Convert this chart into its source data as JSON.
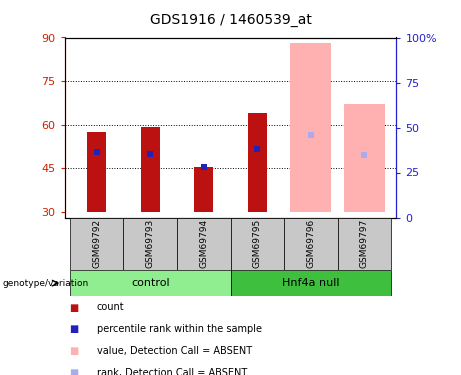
{
  "title": "GDS1916 / 1460539_at",
  "samples": [
    "GSM69792",
    "GSM69793",
    "GSM69794",
    "GSM69795",
    "GSM69796",
    "GSM69797"
  ],
  "ylim_left": [
    28,
    90
  ],
  "ylim_right": [
    0,
    100
  ],
  "yticks_left": [
    30,
    45,
    60,
    75,
    90
  ],
  "yticks_right": [
    0,
    25,
    50,
    75,
    100
  ],
  "bar_bottom": 30,
  "red_bar_tops": [
    57.5,
    59.0,
    45.5,
    64.0,
    null,
    null
  ],
  "blue_marker_vals": [
    50.5,
    50.0,
    45.5,
    51.5,
    null,
    null
  ],
  "pink_bar_tops": [
    null,
    null,
    null,
    null,
    88.0,
    67.0
  ],
  "lightblue_marker_vals": [
    null,
    null,
    null,
    null,
    56.5,
    49.5
  ],
  "bar_width": 0.35,
  "red_color": "#BB1111",
  "blue_color": "#2222BB",
  "pink_color": "#FFB0B0",
  "lightblue_color": "#AAAAEE",
  "control_bg": "#90EE90",
  "hnf4a_bg": "#3EBF3E",
  "sample_area_bg": "#C8C8C8",
  "title_fontsize": 10,
  "tick_fontsize": 8,
  "left_tick_color": "#CC2200",
  "right_tick_color": "#2222CC"
}
